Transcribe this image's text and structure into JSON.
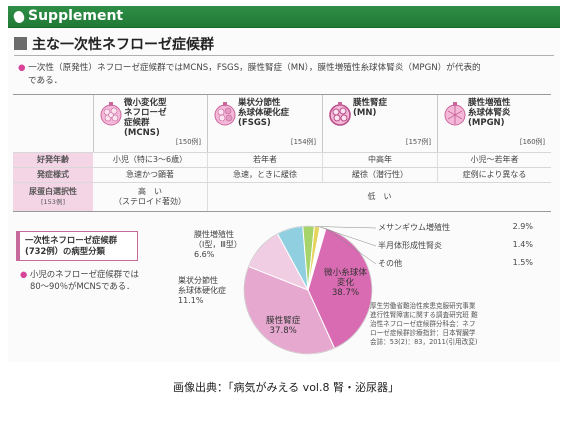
{
  "supplement": {
    "label": "Supplement"
  },
  "section": {
    "title": "主な一次性ネフローゼ症候群"
  },
  "intro": {
    "line1": "一次性（原発性）ネフローゼ症候群ではMCNS，FSGS，膜性腎症（MN），膜性増殖性糸球体腎炎（MPGN）が代表的",
    "line2": "である．"
  },
  "diseases": [
    {
      "name_lines": [
        "微小変化型",
        "ネフローゼ",
        "症候群",
        "(MCNS)"
      ],
      "count": "[150例]"
    },
    {
      "name_lines": [
        "巣状分節性",
        "糸球体硬化症",
        "(FSGS)"
      ],
      "count": "[154例]"
    },
    {
      "name_lines": [
        "膜性腎症",
        "(MN)"
      ],
      "count": "[157例]"
    },
    {
      "name_lines": [
        "膜性増殖性",
        "糸球体腎炎",
        "(MPGN)"
      ],
      "count": "[160例]"
    }
  ],
  "rows": {
    "age": {
      "label": "好発年齢",
      "values": [
        "小児（特に3～6歳）",
        "若年者",
        "中高年",
        "小児～若年者"
      ]
    },
    "onset": {
      "label": "発症様式",
      "values": [
        "急速かつ顕著",
        "急速，ときに緩徐",
        "緩徐（潜行性）",
        "症例により異なる"
      ]
    },
    "selectivity": {
      "label": "尿蛋白選択性",
      "sub": "[153例]",
      "high": "高　い",
      "high_sub": "（ステロイド著効）",
      "low": "低　い"
    }
  },
  "classification": {
    "line1": "一次性ネフローゼ症候群",
    "line2": "(732例）の病型分類"
  },
  "note": {
    "line1": "小児のネフローゼ症候群では",
    "line2": "80～90％がMCNSである．"
  },
  "chart_data": {
    "type": "pie",
    "title": "",
    "slices": [
      {
        "label": "微小糸球体変化",
        "value": 38.7,
        "color": "#d96bb2"
      },
      {
        "label": "膜性腎症",
        "value": 37.8,
        "color": "#e6a8cf"
      },
      {
        "label": "巣状分節性糸球体硬化症",
        "value": 11.1,
        "color": "#f1cde3"
      },
      {
        "label": "膜性増殖性（Ⅰ型，Ⅲ型）",
        "value": 6.6,
        "color": "#8fcfe0"
      },
      {
        "label": "メサンギウム増殖性",
        "value": 2.9,
        "color": "#a6d36a"
      },
      {
        "label": "半月体形成性腎炎",
        "value": 1.4,
        "color": "#e4d45c"
      },
      {
        "label": "その他",
        "value": 1.5,
        "color": "#ffffff"
      }
    ],
    "labels": {
      "mcns": [
        "微小糸球体",
        "変化",
        "38.7%"
      ],
      "mn": [
        "膜性腎症",
        "37.8%"
      ],
      "fsgs": [
        "巣状分節性",
        "糸球体硬化症",
        "11.1%"
      ],
      "mpgn": [
        "膜性増殖性",
        "（Ⅰ型，Ⅲ型）",
        "6.6%"
      ]
    },
    "legend": [
      {
        "label": "メサンギウム増殖性",
        "value": "2.9%"
      },
      {
        "label": "半月体形成性腎炎",
        "value": "1.4%"
      },
      {
        "label": "その他",
        "value": "1.5%"
      }
    ]
  },
  "source": {
    "lines": [
      "厚生労働省難治性疾患克服研究事業",
      "進行性腎障害に関する調査研究班 難",
      "治性ネフローゼ症候群分科会：ネフ",
      "ローゼ症候群診療指針：日本腎臓学",
      "会誌：53(2)：83，2011(引用改変)"
    ]
  },
  "caption": "画像出典：「病気がみえる vol.8 腎・泌尿器」"
}
